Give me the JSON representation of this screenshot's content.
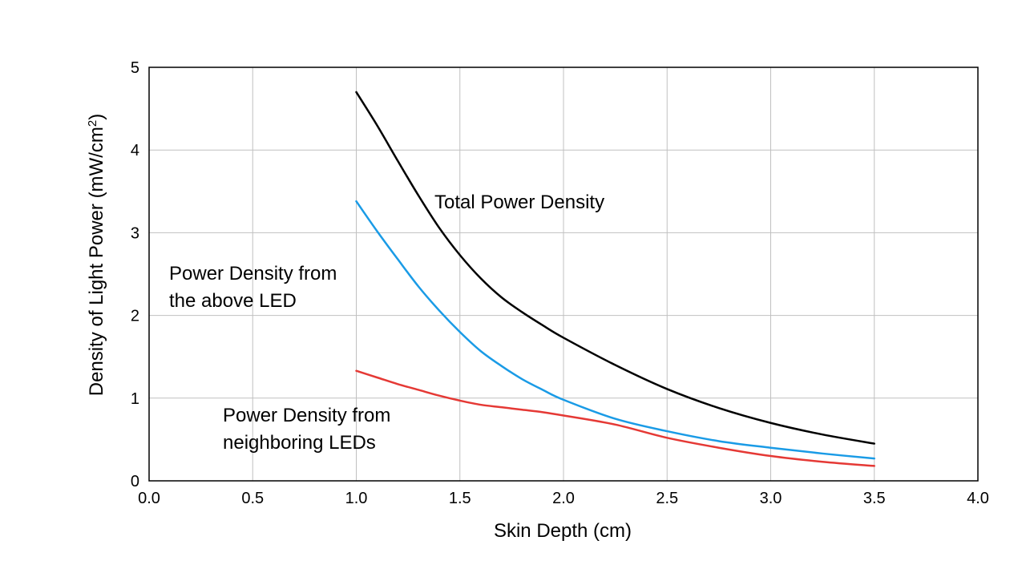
{
  "chart_data": {
    "type": "line",
    "xlabel": "Skin Depth (cm)",
    "ylabel_main": "Density of Light Power (mW/cm",
    "ylabel_sup": "2",
    "ylabel_close": ")",
    "xlim": [
      0,
      4
    ],
    "ylim": [
      0,
      5
    ],
    "x_ticks": [
      "0.0",
      "0.5",
      "1.0",
      "1.5",
      "2.0",
      "2.5",
      "3.0",
      "3.5",
      "4.0"
    ],
    "y_ticks": [
      "0",
      "1",
      "2",
      "3",
      "4",
      "5"
    ],
    "grid": true,
    "series": [
      {
        "name": "Total Power Density",
        "color": "#000000",
        "x": [
          1.0,
          1.1,
          1.2,
          1.3,
          1.4,
          1.5,
          1.6,
          1.7,
          1.8,
          1.9,
          2.0,
          2.25,
          2.5,
          2.75,
          3.0,
          3.25,
          3.5
        ],
        "y": [
          4.7,
          4.3,
          3.87,
          3.45,
          3.06,
          2.73,
          2.45,
          2.22,
          2.04,
          1.88,
          1.73,
          1.4,
          1.11,
          0.88,
          0.7,
          0.56,
          0.45
        ]
      },
      {
        "name": "Power Density from the above LED",
        "color": "#1a9be6",
        "x": [
          1.0,
          1.1,
          1.2,
          1.3,
          1.4,
          1.5,
          1.6,
          1.7,
          1.8,
          1.9,
          2.0,
          2.25,
          2.5,
          2.75,
          3.0,
          3.25,
          3.5
        ],
        "y": [
          3.38,
          3.02,
          2.68,
          2.35,
          2.06,
          1.8,
          1.57,
          1.39,
          1.23,
          1.1,
          0.98,
          0.75,
          0.6,
          0.48,
          0.4,
          0.33,
          0.27
        ]
      },
      {
        "name": "Power Density from neighboring LEDs",
        "color": "#e53935",
        "x": [
          1.0,
          1.1,
          1.2,
          1.3,
          1.4,
          1.5,
          1.6,
          1.7,
          1.8,
          1.9,
          2.0,
          2.25,
          2.5,
          2.75,
          3.0,
          3.25,
          3.5
        ],
        "y": [
          1.33,
          1.25,
          1.17,
          1.1,
          1.03,
          0.97,
          0.92,
          0.89,
          0.86,
          0.83,
          0.79,
          0.68,
          0.52,
          0.4,
          0.3,
          0.23,
          0.18
        ]
      }
    ],
    "annotations": {
      "total": "Total Power Density",
      "above_line1": "Power Density from",
      "above_line2": "the above LED",
      "neighbor_line1": "Power Density from",
      "neighbor_line2": "neighboring LEDs"
    }
  }
}
